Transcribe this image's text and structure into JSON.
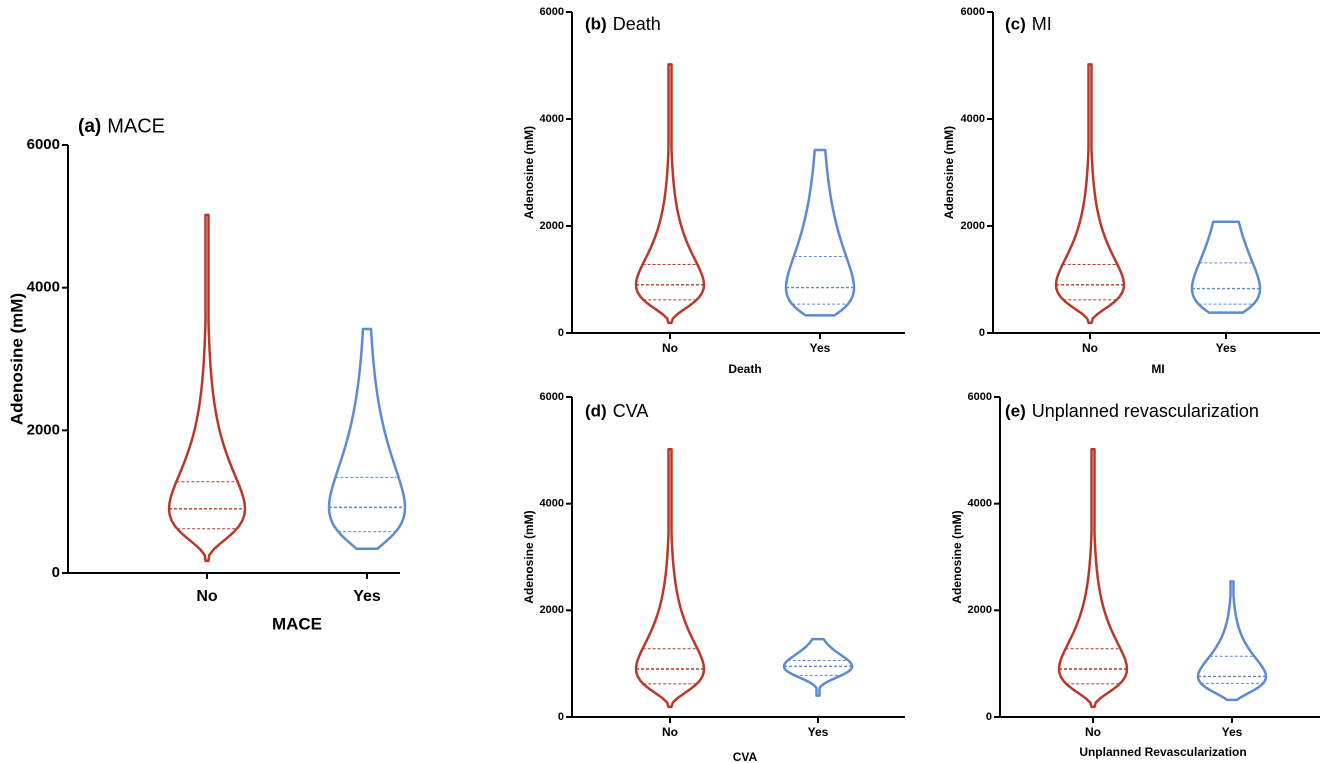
{
  "chart_data": [
    {
      "type": "violin",
      "panel": "(a)",
      "title": "MACE",
      "y_label": "Adenosine (mM)",
      "x_label": "MACE",
      "categories": [
        "No",
        "Yes"
      ],
      "colors": [
        "#b8392a",
        "#5b8bd3"
      ],
      "stats": [
        {
          "min": 170,
          "q1": 620,
          "median": 900,
          "q3": 1280,
          "max": 5020
        },
        {
          "min": 340,
          "q1": 580,
          "median": 920,
          "q3": 1340,
          "max": 3420
        }
      ],
      "ylim": [
        0,
        6000
      ],
      "yticks": [
        0,
        2000,
        4000,
        6000
      ]
    },
    {
      "type": "violin",
      "panel": "(b)",
      "title": "Death",
      "y_label": "Adenosine (mM)",
      "x_label": "Death",
      "categories": [
        "No",
        "Yes"
      ],
      "colors": [
        "#b8392a",
        "#5b8bd3"
      ],
      "stats": [
        {
          "min": 190,
          "q1": 620,
          "median": 900,
          "q3": 1280,
          "max": 5020
        },
        {
          "min": 330,
          "q1": 540,
          "median": 850,
          "q3": 1430,
          "max": 3420
        }
      ],
      "ylim": [
        0,
        6000
      ],
      "yticks": [
        0,
        2000,
        4000,
        6000
      ]
    },
    {
      "type": "violin",
      "panel": "(c)",
      "title": "MI",
      "y_label": "Adenosine (mM)",
      "x_label": "MI",
      "categories": [
        "No",
        "Yes"
      ],
      "colors": [
        "#b8392a",
        "#5b8bd3"
      ],
      "stats": [
        {
          "min": 190,
          "q1": 620,
          "median": 900,
          "q3": 1280,
          "max": 5020
        },
        {
          "min": 380,
          "q1": 540,
          "median": 830,
          "q3": 1310,
          "max": 2080
        }
      ],
      "ylim": [
        0,
        6000
      ],
      "yticks": [
        0,
        2000,
        4000,
        6000
      ]
    },
    {
      "type": "violin",
      "panel": "(d)",
      "title": "CVA",
      "y_label": "Adenosine (mM)",
      "x_label": "CVA",
      "categories": [
        "No",
        "Yes"
      ],
      "colors": [
        "#b8392a",
        "#5b8bd3"
      ],
      "stats": [
        {
          "min": 190,
          "q1": 620,
          "median": 900,
          "q3": 1280,
          "max": 5020
        },
        {
          "min": 400,
          "q1": 780,
          "median": 950,
          "q3": 1060,
          "max": 1460
        }
      ],
      "ylim": [
        0,
        6000
      ],
      "yticks": [
        0,
        2000,
        4000,
        6000
      ]
    },
    {
      "type": "violin",
      "panel": "(e)",
      "title": "Unplanned revascularization",
      "y_label": "Adenosine (mM)",
      "x_label": "Unplanned Revascularization",
      "categories": [
        "No",
        "Yes"
      ],
      "colors": [
        "#b8392a",
        "#5b8bd3"
      ],
      "stats": [
        {
          "min": 190,
          "q1": 620,
          "median": 900,
          "q3": 1280,
          "max": 5020
        },
        {
          "min": 320,
          "q1": 630,
          "median": 760,
          "q3": 1140,
          "max": 2540
        }
      ],
      "ylim": [
        0,
        6000
      ],
      "yticks": [
        0,
        2000,
        4000,
        6000
      ]
    }
  ]
}
